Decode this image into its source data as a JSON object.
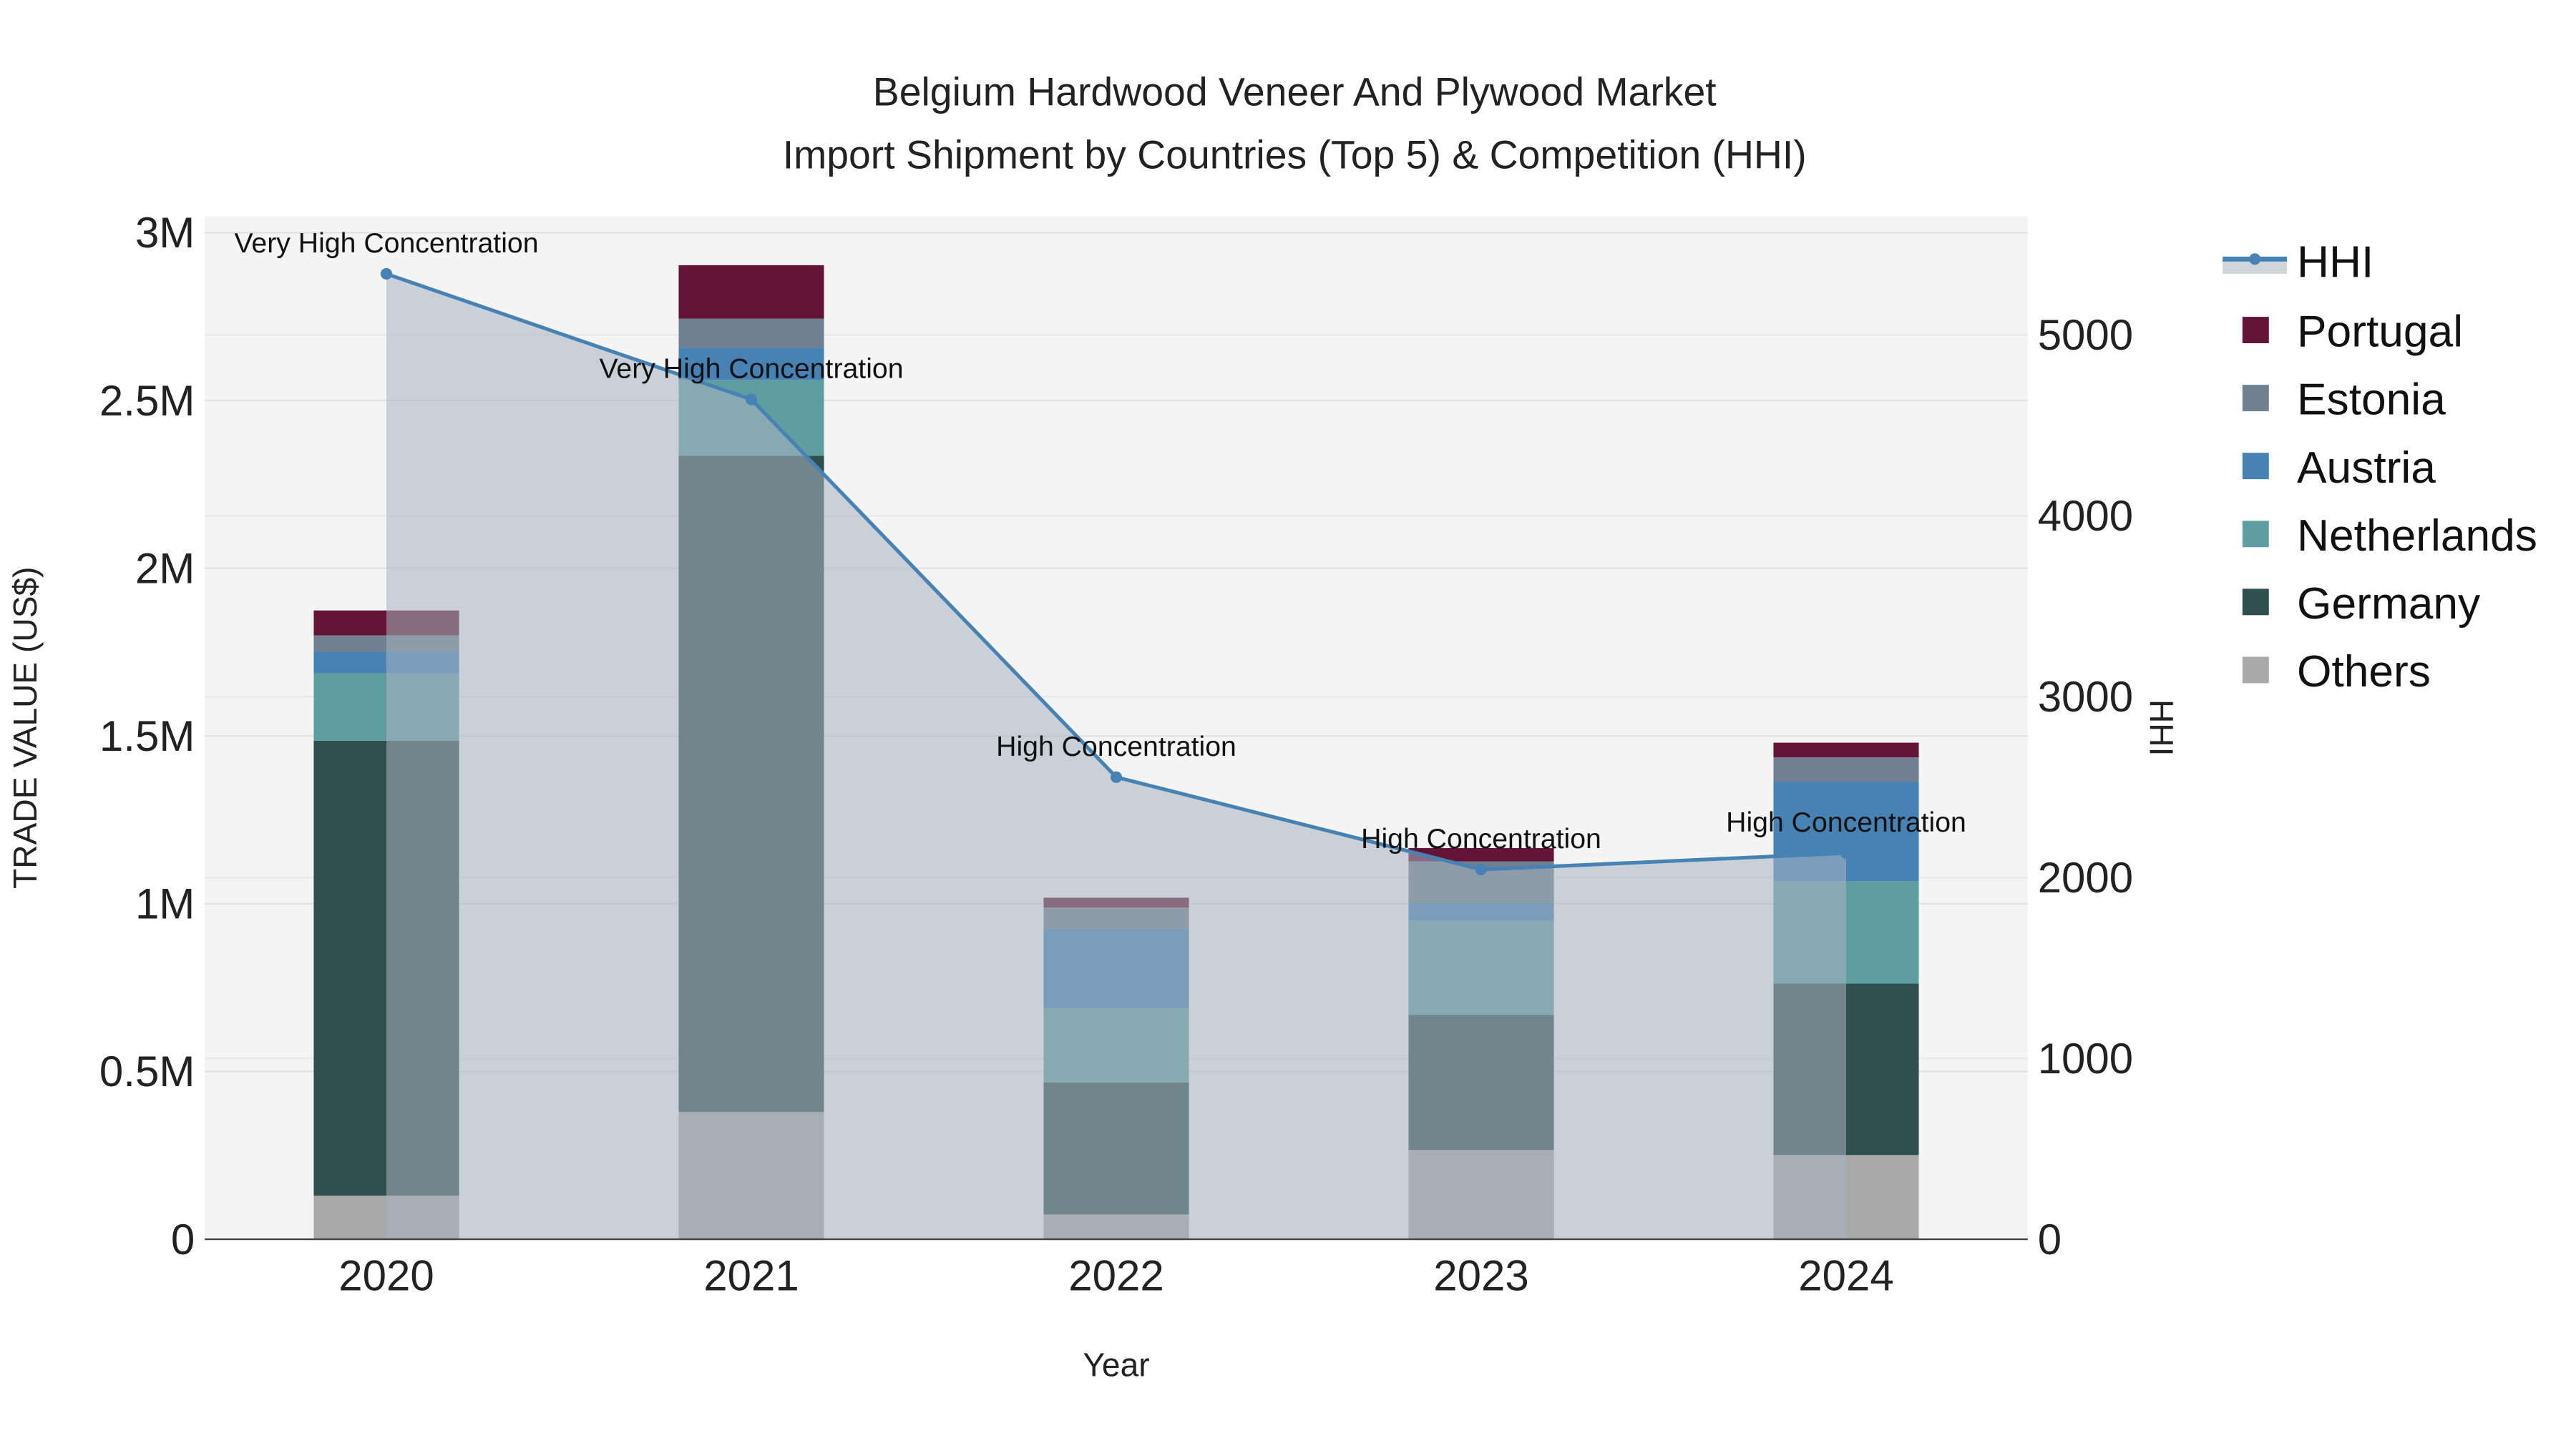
{
  "chart_data": {
    "type": "bar",
    "stacked": true,
    "title_line1": "Belgium Hardwood Veneer And Plywood Market",
    "title_line2": "Import Shipment by Countries (Top 5) & Competition (HHI)",
    "xlabel": "Year",
    "ylabel": "TRADE VALUE (US$)",
    "y2label": "HHI",
    "categories": [
      "2020",
      "2021",
      "2022",
      "2023",
      "2024"
    ],
    "ylim": [
      0,
      3050000
    ],
    "y_ticks": [
      {
        "v": 0,
        "label": "0"
      },
      {
        "v": 500000,
        "label": "0.5M"
      },
      {
        "v": 1000000,
        "label": "1M"
      },
      {
        "v": 1500000,
        "label": "1.5M"
      },
      {
        "v": 2000000,
        "label": "2M"
      },
      {
        "v": 2500000,
        "label": "2.5M"
      },
      {
        "v": 3000000,
        "label": "3M"
      }
    ],
    "y2lim": [
      0,
      5660
    ],
    "y2_ticks": [
      {
        "v": 0,
        "label": "0"
      },
      {
        "v": 1000,
        "label": "1000"
      },
      {
        "v": 2000,
        "label": "2000"
      },
      {
        "v": 3000,
        "label": "3000"
      },
      {
        "v": 4000,
        "label": "4000"
      },
      {
        "v": 5000,
        "label": "5000"
      }
    ],
    "series": [
      {
        "name": "Others",
        "color": "#a9a9a9",
        "values": [
          130000,
          379000,
          74000,
          266000,
          251000
        ]
      },
      {
        "name": "Germany",
        "color": "#2f4f4f",
        "values": [
          1356000,
          1956000,
          393000,
          403000,
          511000
        ]
      },
      {
        "name": "Netherlands",
        "color": "#5f9ea0",
        "values": [
          201000,
          226000,
          222000,
          280000,
          305000
        ]
      },
      {
        "name": "Austria",
        "color": "#4682b4",
        "values": [
          64000,
          96000,
          236000,
          54000,
          296000
        ]
      },
      {
        "name": "Estonia",
        "color": "#708090",
        "values": [
          49000,
          87000,
          64000,
          123000,
          73000
        ]
      },
      {
        "name": "Portugal",
        "color": "#641436",
        "values": [
          74000,
          159000,
          29000,
          40000,
          44000
        ]
      }
    ],
    "hhi": {
      "name": "HHI",
      "color": "#4682b4",
      "values": [
        5338,
        4644,
        2555,
        2044,
        2135
      ],
      "annotations": [
        "Very High Concentration",
        "Very High Concentration",
        "High Concentration",
        "High Concentration",
        "High Concentration"
      ]
    },
    "legend": [
      "HHI",
      "Portugal",
      "Estonia",
      "Austria",
      "Netherlands",
      "Germany",
      "Others"
    ],
    "legend_position": "right",
    "grid": true
  }
}
